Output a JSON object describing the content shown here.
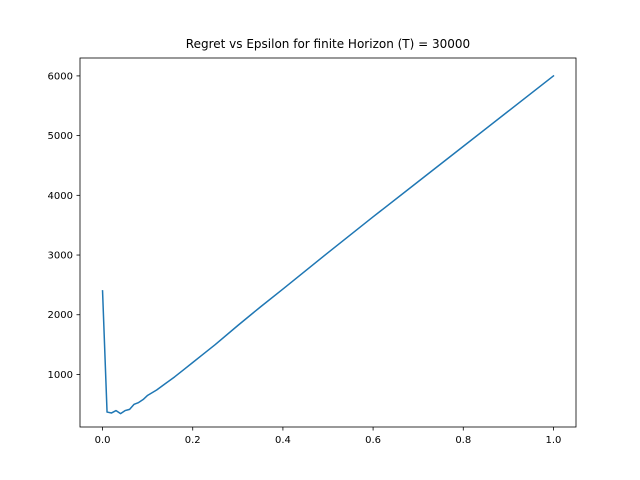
{
  "chart_data": {
    "type": "line",
    "title": "Regret vs Epsilon for finite Horizon (T) = 30000",
    "xlabel": "",
    "ylabel": "",
    "xlim": [
      -0.05,
      1.05
    ],
    "ylim": [
      120,
      6300
    ],
    "xticks": [
      0.0,
      0.2,
      0.4,
      0.6,
      0.8,
      1.0
    ],
    "xtick_labels": [
      "0.0",
      "0.2",
      "0.4",
      "0.6",
      "0.8",
      "1.0"
    ],
    "yticks": [
      1000,
      2000,
      3000,
      4000,
      5000,
      6000
    ],
    "ytick_labels": [
      "1000",
      "2000",
      "3000",
      "4000",
      "5000",
      "6000"
    ],
    "grid": false,
    "legend": "none",
    "series": [
      {
        "color": "#1f77b4",
        "x": [
          0.0,
          0.01,
          0.02,
          0.03,
          0.04,
          0.05,
          0.06,
          0.07,
          0.08,
          0.09,
          0.1,
          0.12,
          0.14,
          0.16,
          0.18,
          0.2,
          0.22,
          0.25,
          0.3,
          0.35,
          0.4,
          0.5,
          0.6,
          0.7,
          0.8,
          0.9,
          1.0
        ],
        "y": [
          2400,
          370,
          355,
          395,
          345,
          395,
          415,
          500,
          530,
          580,
          650,
          740,
          850,
          960,
          1080,
          1200,
          1320,
          1500,
          1820,
          2130,
          2430,
          3040,
          3640,
          4230,
          4820,
          5410,
          6000
        ]
      }
    ]
  }
}
